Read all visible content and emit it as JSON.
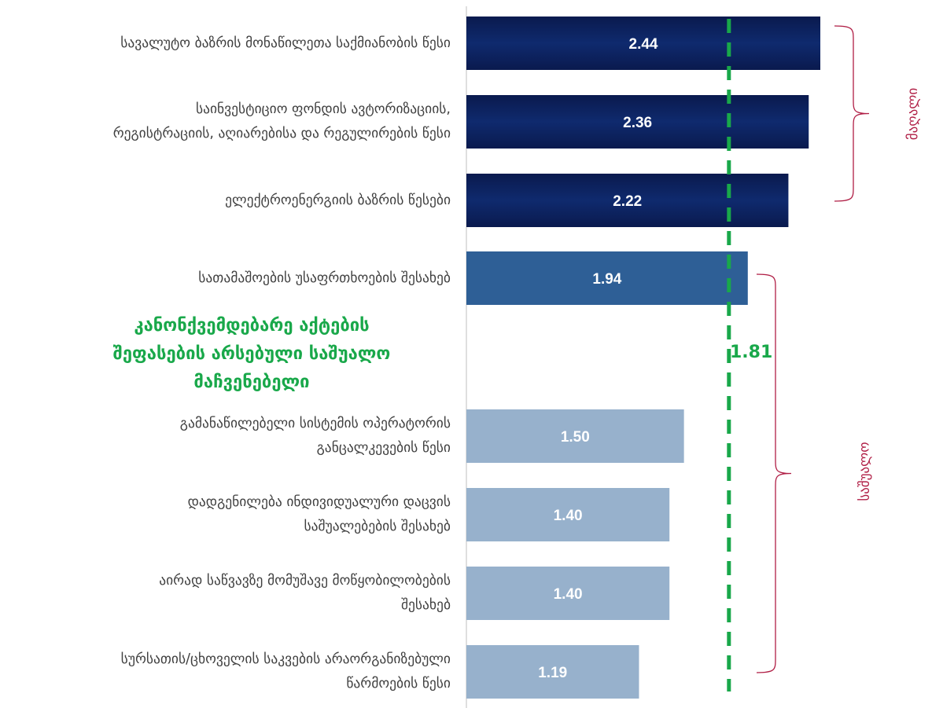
{
  "chart_data": {
    "type": "bar",
    "orientation": "horizontal",
    "categories": [
      "სავალუტო ბაზრის მონაწილეთა საქმიანობის წესი",
      "საინვესტიციო ფონდის ავტორიზაციის,\nრეგისტრაციის, აღიარებისა და რეგულირების წესი",
      "ელექტროენერგიის ბაზრის წესები",
      "სათამაშოების უსაფრთხოების შესახებ",
      "გამანაწილებელი სისტემის ოპერატორის\nგანცალკევების წესი",
      "დადგენილება ინდივიდუალური დაცვის\nსაშუალებების შესახებ",
      "აირად საწვავზე მომუშავე მოწყობილობების\nშესახებ",
      "სურსათის/ცხოველის საკვების არაორგანიზებული\nწარმოების წესი"
    ],
    "values": [
      2.44,
      2.36,
      2.22,
      1.94,
      1.5,
      1.4,
      1.4,
      1.19
    ],
    "value_labels": [
      "2.44",
      "2.36",
      "2.22",
      "1.94",
      "1.50",
      "1.40",
      "1.40",
      "1.19"
    ],
    "xlim": [
      0,
      2.6
    ],
    "reference_line": {
      "value": 1.81,
      "label": "1.81",
      "note": "კანონქვემდებარე აქტების\nშეფასების  არსებული საშუალო\nმაჩვენებელი",
      "style": "dashed",
      "color": "#19a84a"
    },
    "groups": [
      {
        "label": "მაღალი",
        "from": 0,
        "to": 2,
        "color": "#0b1f5c"
      },
      {
        "label": "საშუალო",
        "from": 3,
        "to": 7
      }
    ],
    "colors": {
      "high": "#0b1f5c",
      "medium": "#2e5f96",
      "low": "#97b1cc",
      "bracket": "#b01e45",
      "axis": "#bfbfbf"
    },
    "grid": false,
    "legend": "none"
  }
}
